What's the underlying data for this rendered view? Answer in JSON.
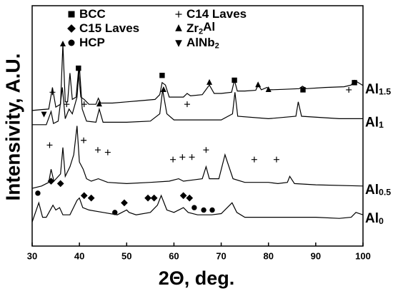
{
  "chart_data": {
    "type": "line",
    "x_label": "2Θ, deg.",
    "y_label": "Intensivity, A.U.",
    "xlim": [
      30,
      100
    ],
    "xticks": [
      30,
      40,
      50,
      60,
      70,
      80,
      90,
      100
    ],
    "ylim": [
      0,
      100
    ],
    "color": "#000000",
    "series": [
      {
        "name": "Al1.5",
        "x": [
          30,
          32,
          33.5,
          34.3,
          35,
          36,
          36.5,
          37,
          37.5,
          38,
          38.5,
          39.3,
          39.8,
          40.3,
          41,
          42,
          43.5,
          44,
          44.5,
          47,
          50,
          53,
          56,
          57,
          57.5,
          58.2,
          59,
          62,
          62.8,
          63.5,
          66,
          67.5,
          68.5,
          70,
          72.2,
          72.8,
          73.4,
          75,
          77.3,
          77.8,
          78.5,
          79.7,
          80.3,
          83,
          86.5,
          87.2,
          88,
          92,
          96,
          97.5,
          98.2,
          100
        ],
        "values": [
          56.4,
          56.8,
          57,
          66,
          57.8,
          59,
          84,
          60,
          60,
          72,
          61,
          62,
          73,
          62,
          61,
          59,
          59,
          61.5,
          59.5,
          59.5,
          60,
          60.5,
          61,
          63,
          68,
          67,
          62,
          62,
          63.5,
          62.5,
          63,
          67,
          63.5,
          63.5,
          64,
          69,
          64.5,
          64.5,
          64.8,
          67,
          65,
          66,
          65,
          65.2,
          65.5,
          66.5,
          65.5,
          66,
          66.3,
          67,
          69,
          66.8
        ]
      },
      {
        "name": "Al1",
        "x": [
          30,
          33,
          34,
          34.5,
          35.5,
          36.4,
          37,
          37.8,
          38.5,
          39.5,
          40,
          40.6,
          41.5,
          43.5,
          44.2,
          45,
          50,
          55,
          57,
          57.6,
          58.5,
          60,
          65,
          70,
          72.4,
          72.9,
          73.5,
          80,
          85.8,
          86.3,
          87,
          95,
          100
        ],
        "values": [
          50.5,
          50.5,
          56,
          51,
          52,
          66,
          53,
          57,
          55,
          62,
          75,
          57,
          52,
          51.5,
          57,
          51.5,
          51.5,
          52,
          55,
          65,
          55,
          52.5,
          52.5,
          52.5,
          55,
          64,
          54,
          53,
          54,
          60,
          54,
          53,
          53
        ]
      },
      {
        "name": "Al0.5",
        "x": [
          30,
          32,
          33.5,
          34,
          34.6,
          36,
          36.5,
          37,
          38,
          38.8,
          39.5,
          40,
          40.8,
          41.5,
          42.5,
          44,
          46,
          50,
          55,
          59,
          61,
          62,
          64,
          66,
          66.8,
          67.5,
          69.5,
          70.8,
          71.3,
          72.5,
          75,
          77,
          80,
          82,
          84,
          84.5,
          85.5,
          90,
          100
        ],
        "values": [
          24,
          25,
          26.5,
          32,
          27,
          30,
          41,
          29,
          33,
          38,
          50,
          35,
          32,
          28,
          27,
          28,
          26.5,
          26,
          26.5,
          27,
          28,
          27,
          27.5,
          28,
          33,
          28,
          28,
          38,
          35,
          28,
          26.5,
          26.5,
          26.5,
          26,
          26.5,
          29,
          26,
          25.5,
          25
        ]
      },
      {
        "name": "Al0",
        "x": [
          30,
          31.4,
          32.2,
          33,
          34.4,
          35,
          35.8,
          36.5,
          38,
          39.5,
          40,
          40.7,
          42,
          45,
          48,
          50,
          50.5,
          52,
          55,
          56.5,
          57.3,
          58.5,
          60,
          62,
          63,
          65,
          68,
          70,
          72.3,
          73.3,
          75,
          80,
          85,
          90,
          95,
          97.5,
          98.5,
          100
        ],
        "values": [
          10,
          18,
          12,
          12,
          17,
          15,
          16,
          13,
          13,
          19,
          20,
          16,
          15,
          14,
          13,
          15,
          14,
          13,
          14,
          17,
          21,
          15,
          14,
          16,
          14,
          13,
          13,
          13.5,
          18,
          14,
          12,
          12,
          12,
          12,
          11.5,
          12,
          14,
          13
        ]
      }
    ],
    "phases": [
      {
        "name": "BCC",
        "symbol": "square",
        "x": [
          39.8,
          57.5,
          72.8,
          87.3,
          98.2
        ],
        "y": [
          74,
          71,
          69,
          65,
          68
        ]
      },
      {
        "name": "C15 Laves",
        "symbol": "diamond",
        "x": [
          34,
          36,
          41,
          42.5,
          49.5,
          54.5,
          55.8,
          62,
          63.3
        ],
        "y": [
          27,
          26,
          21,
          20,
          18,
          20,
          20,
          21,
          20
        ]
      },
      {
        "name": "HCP",
        "symbol": "circle",
        "x": [
          31.2,
          47.5,
          64.3,
          66.3,
          68.1
        ],
        "y": [
          22,
          14,
          16,
          15,
          15
        ]
      },
      {
        "name": "C14 Laves",
        "symbol": "plus",
        "x": [
          34.3,
          37.3,
          41,
          62.8,
          97,
          33.7,
          40.9,
          43.9,
          46,
          59.8,
          61.8,
          63.8,
          66.8,
          77,
          81.7
        ],
        "y": [
          64,
          59,
          59,
          59,
          65,
          42,
          44,
          40,
          39,
          36,
          37,
          37,
          40,
          36,
          36
        ]
      },
      {
        "name": "Zr2Al",
        "symbol": "triangle-up",
        "x": [
          36.5,
          44.2,
          57.8,
          67.5,
          77.8,
          80
        ],
        "y": [
          84,
          59,
          65,
          68,
          67,
          65
        ]
      },
      {
        "name": "AlNb2",
        "symbol": "triangle-down",
        "x": [
          32.5
        ],
        "y": [
          55
        ]
      }
    ]
  }
}
